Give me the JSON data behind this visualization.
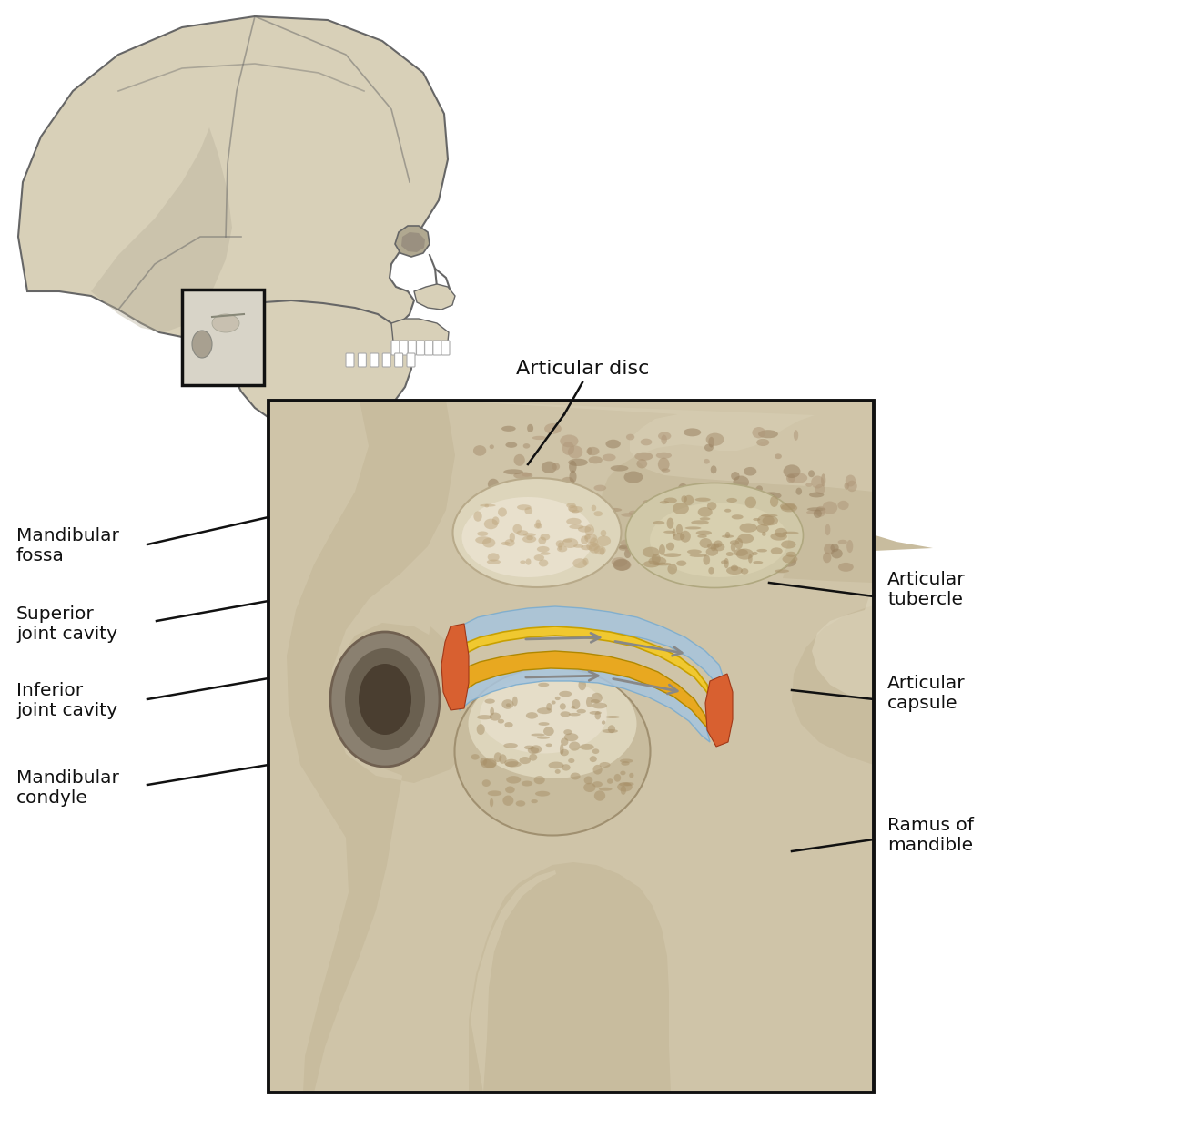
{
  "bg_color": "#ffffff",
  "skull_fill": "#d8d0b8",
  "skull_fill2": "#c8c0a8",
  "skull_outline": "#666666",
  "bone_tan": "#c8bc9e",
  "bone_light": "#ddd5bb",
  "bone_spongy": "#a89878",
  "cartilage_blue": "#a8c4dc",
  "disc_yellow": "#f0c830",
  "disc_amber": "#e8a820",
  "capsule_orange": "#d86030",
  "arrow_gray": "#c0c0c0",
  "label_color": "#111111",
  "label_fontsize": 14.5,
  "box_color": "#cfc4a8",
  "labels": {
    "articular_disc": "Articular disc",
    "mandibular_fossa": "Mandibular\nfossa",
    "superior_joint_cavity": "Superior\njoint cavity",
    "inferior_joint_cavity": "Inferior\njoint cavity",
    "mandibular_condyle": "Mandibular\ncondyle",
    "articular_tubercle": "Articular\ntubercle",
    "articular_capsule": "Articular\ncapsule",
    "ramus_of_mandible": "Ramus of\nmandible"
  }
}
